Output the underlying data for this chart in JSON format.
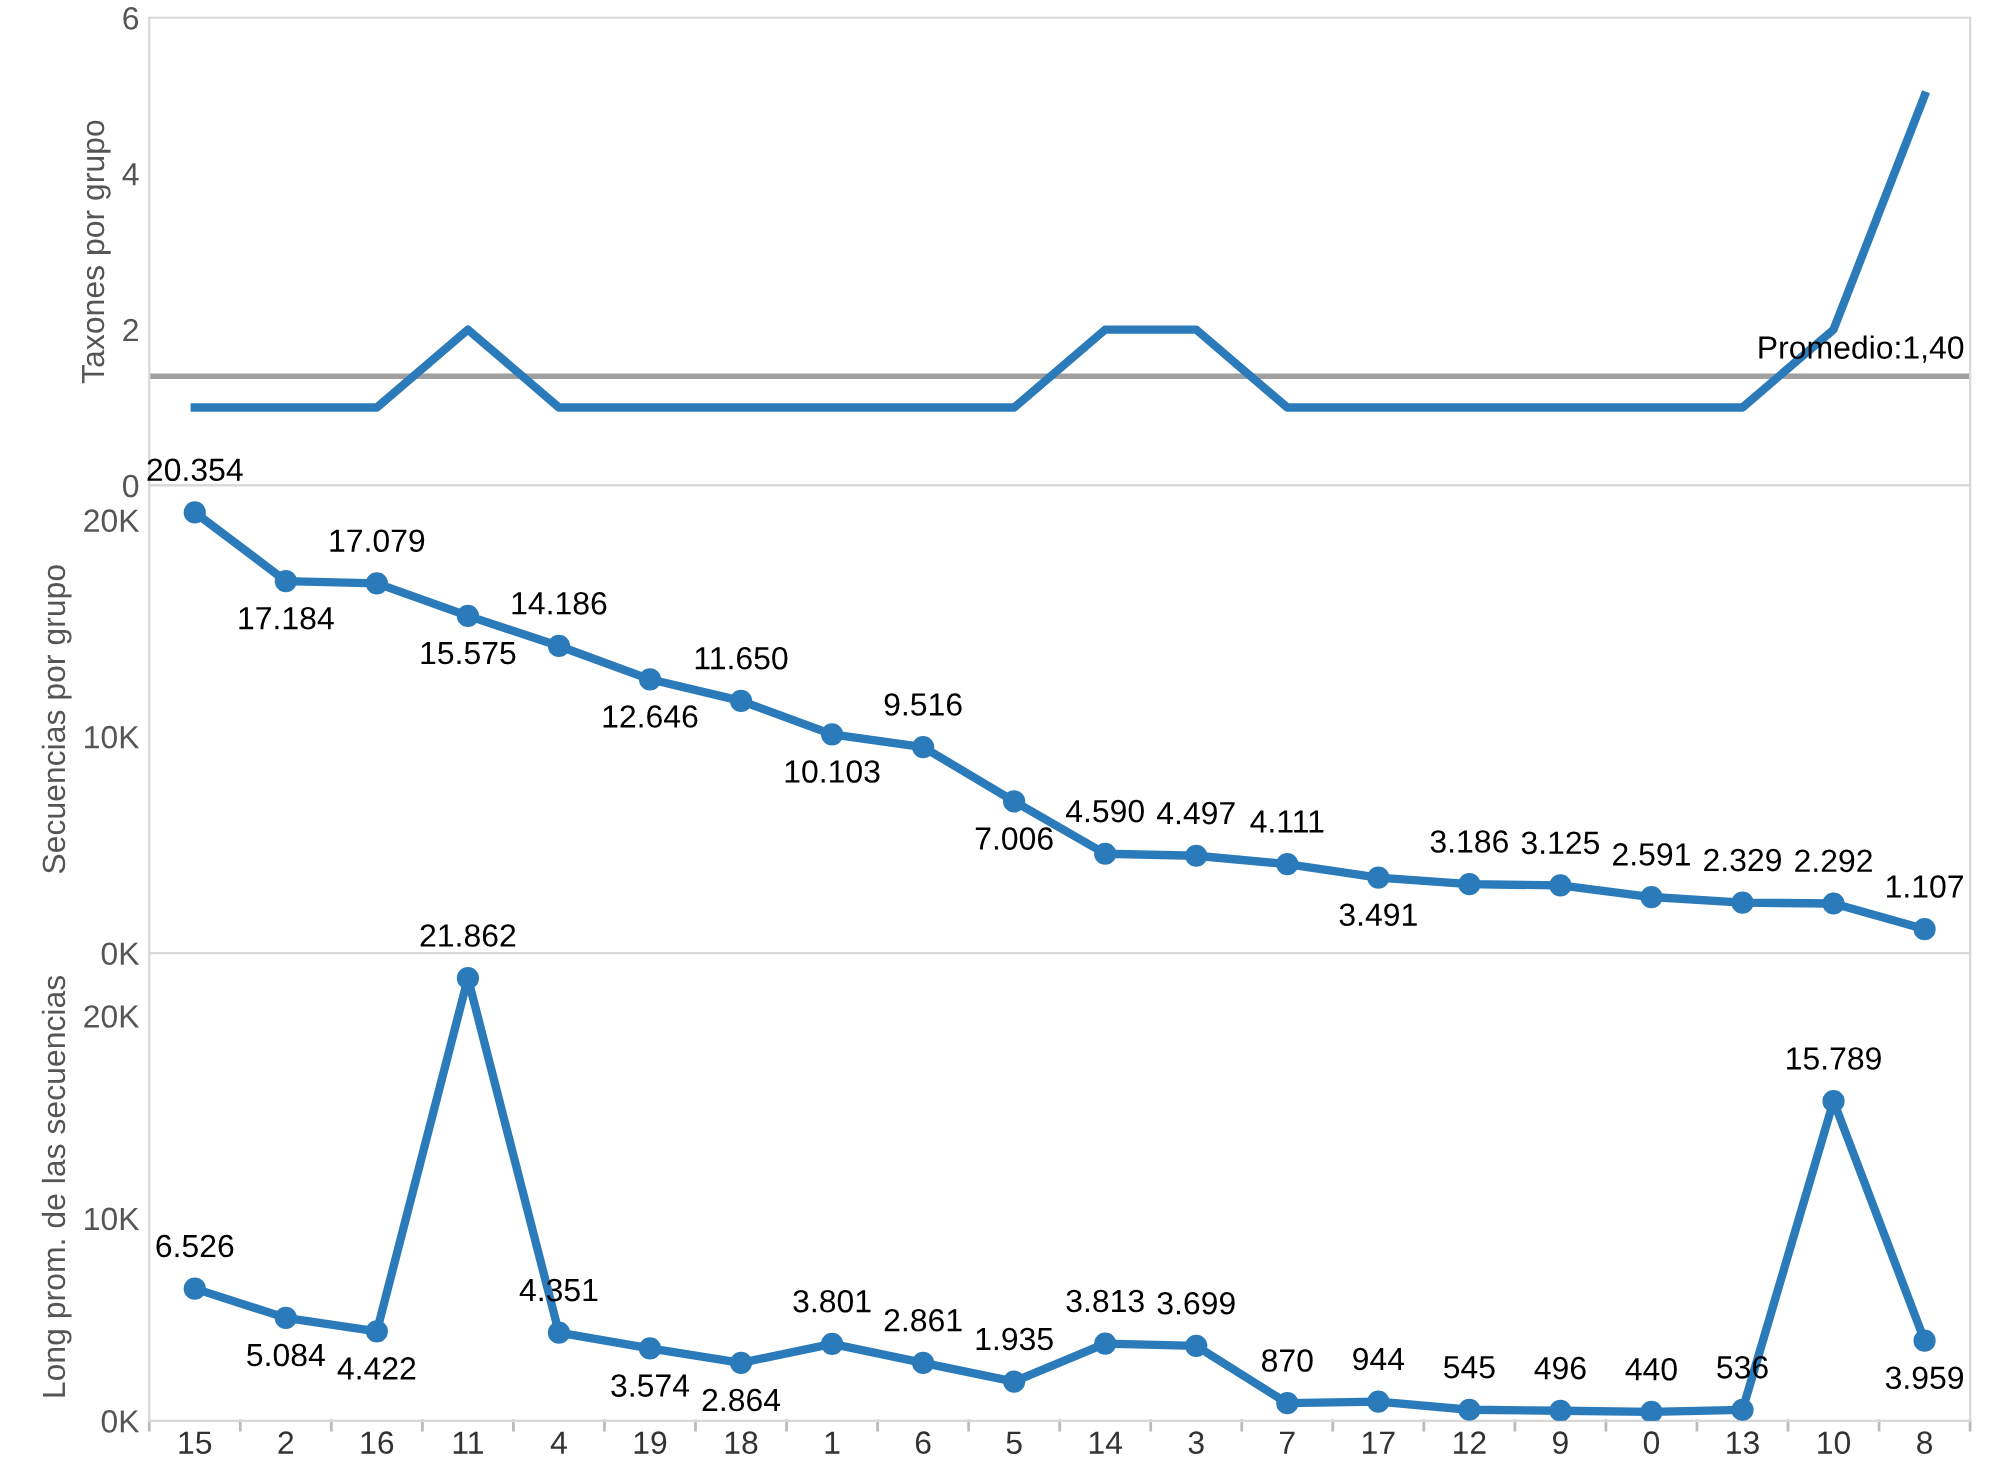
{
  "chart_data": [
    {
      "type": "line",
      "ylabel": "Taxones por grupo",
      "categories": [
        "15",
        "2",
        "16",
        "11",
        "4",
        "19",
        "18",
        "1",
        "6",
        "5",
        "14",
        "3",
        "7",
        "17",
        "12",
        "9",
        "0",
        "13",
        "10",
        "8"
      ],
      "series": [
        {
          "color": "#2b7bba",
          "values": [
            1,
            1,
            1,
            2,
            1,
            1,
            1,
            1,
            1,
            1,
            2,
            2,
            1,
            1,
            1,
            1,
            1,
            1,
            2,
            5
          ]
        }
      ],
      "ylim": [
        0,
        6
      ],
      "yticks": [
        0,
        2,
        4,
        6
      ],
      "marker": "none",
      "line_style": "solid",
      "tick_labels": "y",
      "ref_lines": [
        {
          "axis": "y",
          "value": 1.4,
          "label": "Promedio:1,40",
          "color": "#a0a0a0"
        }
      ]
    },
    {
      "type": "line",
      "ylabel": "Secuencias por grupo",
      "categories": [
        "15",
        "2",
        "16",
        "11",
        "4",
        "19",
        "18",
        "1",
        "6",
        "5",
        "14",
        "3",
        "7",
        "17",
        "12",
        "9",
        "0",
        "13",
        "10",
        "8"
      ],
      "series": [
        {
          "color": "#2b7bba",
          "values": [
            20354,
            17184,
            17079,
            15575,
            14186,
            12646,
            11650,
            10103,
            9516,
            7006,
            4590,
            4497,
            4111,
            3491,
            3186,
            3125,
            2591,
            2329,
            2292,
            1107
          ],
          "value_labels": [
            "20.354",
            "17.184",
            "17.079",
            "15.575",
            "14.186",
            "12.646",
            "11.650",
            "10.103",
            "9.516",
            "7.006",
            "4.590",
            "4.497",
            "4.111",
            "3.491",
            "3.186",
            "3.125",
            "2.591",
            "2.329",
            "2.292",
            "1.107"
          ]
        }
      ],
      "ylim": [
        0,
        21600
      ],
      "yticks": [
        {
          "value": 0,
          "label": "0K"
        },
        {
          "value": 10000,
          "label": "10K"
        },
        {
          "value": 20000,
          "label": "20K"
        }
      ],
      "marker": "circle",
      "line_style": "solid",
      "tick_labels": "y"
    },
    {
      "type": "line",
      "ylabel": "Long prom. de las secuencias",
      "categories": [
        "15",
        "2",
        "16",
        "11",
        "4",
        "19",
        "18",
        "1",
        "6",
        "5",
        "14",
        "3",
        "7",
        "17",
        "12",
        "9",
        "0",
        "13",
        "10",
        "8"
      ],
      "series": [
        {
          "color": "#2b7bba",
          "values": [
            6526,
            5084,
            4422,
            21862,
            4351,
            3574,
            2864,
            3801,
            2861,
            1935,
            3813,
            3699,
            870,
            944,
            545,
            496,
            440,
            536,
            15789,
            3959
          ],
          "value_labels": [
            "6.526",
            "5.084",
            "4.422",
            "21.862",
            "4.351",
            "3.574",
            "2.864",
            "3.801",
            "2.861",
            "1.935",
            "3.813",
            "3.699",
            "870",
            "944",
            "545",
            "496",
            "440",
            "536",
            "15.789",
            "3.959"
          ]
        }
      ],
      "ylim": [
        0,
        23100
      ],
      "yticks": [
        {
          "value": 0,
          "label": "0K"
        },
        {
          "value": 10000,
          "label": "10K"
        },
        {
          "value": 20000,
          "label": "20K"
        }
      ],
      "marker": "circle",
      "line_style": "solid"
    }
  ]
}
